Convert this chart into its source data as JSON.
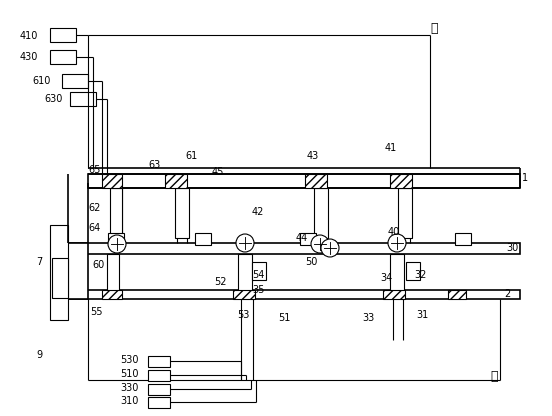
{
  "bg_color": "#ffffff",
  "line_color": "#000000",
  "label_hou": "后",
  "label_qian": "前",
  "figsize": [
    5.52,
    4.16
  ],
  "dpi": 100
}
